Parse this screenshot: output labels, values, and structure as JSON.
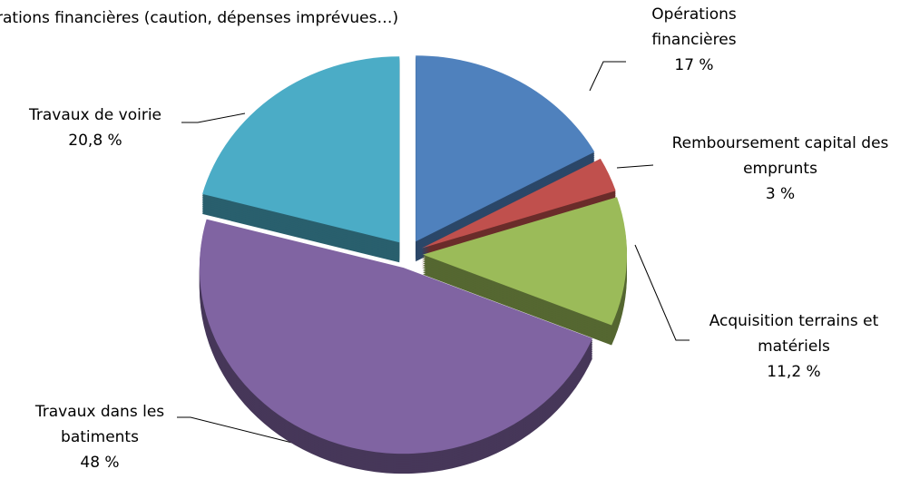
{
  "chart_data": {
    "type": "pie",
    "annotation": "rations financières (caution, dépenses imprévues…)",
    "categories": [
      "Opérations financières",
      "Remboursement capital des emprunts",
      "Acquisition terrains et matériels",
      "Travaux dans les batiments",
      "Travaux de voirie"
    ],
    "values": [
      17,
      3,
      11.2,
      48,
      20.8
    ],
    "value_labels": [
      "17 %",
      "3 %",
      "11,2 %",
      "48 %",
      "20,8 %"
    ],
    "colors": [
      "#4f81bd",
      "#c0504d",
      "#9bbb59",
      "#8064a2",
      "#4bacc6"
    ]
  }
}
